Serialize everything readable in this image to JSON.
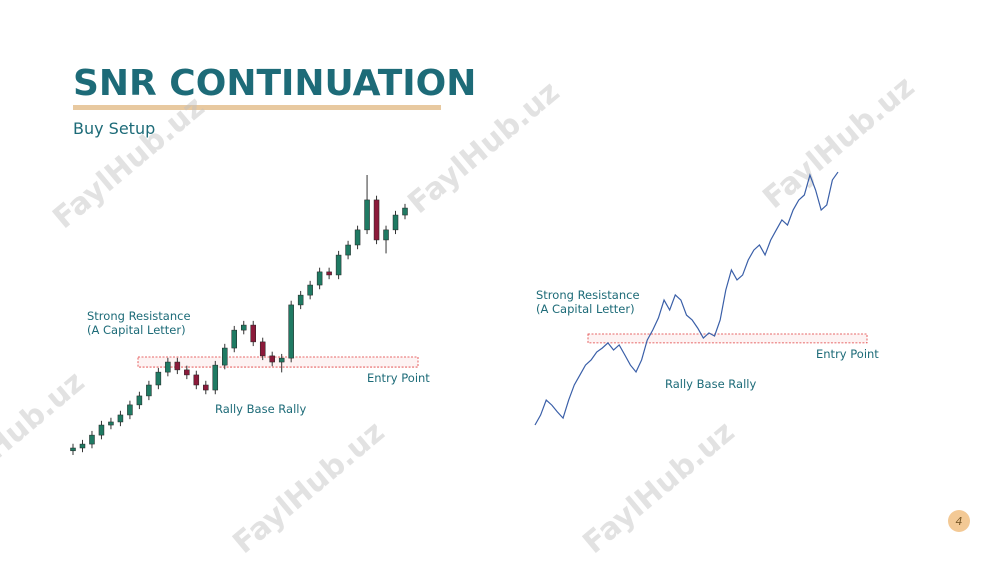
{
  "slide": {
    "title": "SNR CONTINUATION",
    "subtitle": "Buy Setup",
    "page_number": "4",
    "watermark": "FaylHub.uz"
  },
  "chart_data": [
    {
      "type": "candlestick",
      "ylim": [
        0,
        100
      ],
      "up_color": "#1f7a63",
      "down_color": "#8b1a3a",
      "zone_color": "#e03a3a",
      "open": [
        1.5,
        2.5,
        3.9,
        7.1,
        10.7,
        11.8,
        14.3,
        17.9,
        21.1,
        25,
        29.6,
        33.2,
        30.4,
        28.6,
        25,
        23.2,
        32.1,
        38.2,
        44.6,
        46.4,
        40.4,
        35.4,
        33.2,
        34.6,
        53.6,
        57.1,
        60.7,
        65.4,
        64.3,
        71.4,
        75,
        80.4,
        91.1,
        76.8,
        80.4,
        85.7
      ],
      "high": [
        4,
        5.4,
        8.6,
        12.2,
        13.3,
        15.8,
        19.4,
        22.6,
        26.5,
        31.1,
        34.7,
        34.7,
        31.9,
        30.1,
        26.5,
        33.6,
        39.7,
        46.1,
        47.9,
        47.9,
        41.9,
        36.9,
        36.1,
        55.1,
        58.6,
        62.2,
        66.9,
        66.9,
        72.9,
        76.5,
        81.9,
        100,
        92.6,
        81.9,
        87.2,
        89.7
      ],
      "low": [
        0,
        1,
        2.4,
        5.6,
        9.2,
        10.3,
        12.8,
        16.4,
        19.6,
        23.5,
        28.1,
        28.9,
        27.1,
        23.5,
        21.7,
        21.7,
        30.6,
        36.7,
        43.1,
        38.9,
        33.9,
        31.7,
        29.5,
        33.1,
        52.1,
        55.6,
        59.2,
        62.8,
        62.8,
        69.9,
        73.5,
        78.9,
        75.3,
        72,
        78.9,
        84.2
      ],
      "close": [
        2.5,
        3.9,
        7.1,
        10.7,
        11.8,
        14.3,
        17.9,
        21.1,
        25,
        29.6,
        33.2,
        30.4,
        28.6,
        25,
        23.2,
        32.1,
        38.2,
        44.6,
        46.4,
        40.4,
        35.4,
        33.2,
        34.6,
        53.6,
        57.1,
        60.7,
        65.4,
        64.3,
        71.4,
        75,
        80.4,
        91.1,
        76.8,
        80.4,
        85.7,
        88.2
      ],
      "zone": [
        31.4,
        35
      ],
      "annotations": [
        "Strong Resistance",
        "(A Capital Letter)",
        "Entry Point",
        "Rally Base Rally"
      ]
    },
    {
      "type": "line",
      "ylim": [
        0,
        100
      ],
      "color": "#3a5fa8",
      "zone_color": "#e03a3a",
      "values": [
        0,
        3.9,
        9.8,
        7.8,
        5.1,
        2.7,
        9.8,
        15.7,
        19.6,
        23.5,
        25.5,
        28.6,
        30.2,
        32.2,
        29.4,
        31.4,
        27.5,
        23.5,
        20.8,
        25.5,
        33.3,
        37.3,
        42,
        49,
        45.1,
        51,
        49,
        43.1,
        41.2,
        38,
        34.1,
        36.1,
        34.9,
        41.2,
        52.9,
        60.8,
        56.9,
        58.8,
        64.7,
        68.6,
        70.6,
        66.7,
        72.5,
        76.5,
        80.4,
        78.4,
        84.3,
        88.2,
        90.2,
        98,
        92.2,
        84.3,
        86.3,
        96.1,
        99.2
      ],
      "zone": [
        32.2,
        35.7
      ],
      "annotations": [
        "Strong Resistance",
        "(A Capital Letter)",
        "Entry Point",
        "Rally Base Rally"
      ]
    }
  ]
}
